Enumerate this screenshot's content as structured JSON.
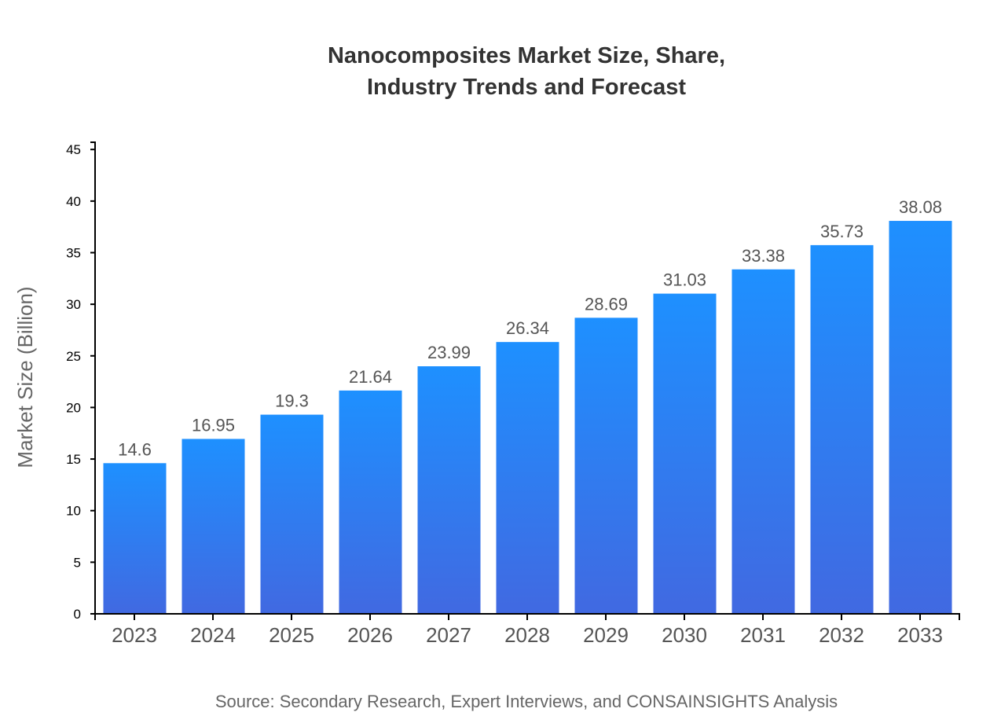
{
  "chart_data": {
    "type": "bar",
    "title_lines": [
      "Nanocomposites Market Size, Share,",
      "Industry Trends and Forecast"
    ],
    "xlabel": "",
    "ylabel": "Market Size (Billion)",
    "categories": [
      "2023",
      "2024",
      "2025",
      "2026",
      "2027",
      "2028",
      "2029",
      "2030",
      "2031",
      "2032",
      "2033"
    ],
    "values": [
      14.6,
      16.95,
      19.3,
      21.64,
      23.99,
      26.34,
      28.69,
      31.03,
      33.38,
      35.73,
      38.08
    ],
    "ylim": [
      0,
      45.7
    ],
    "yticks": [
      0,
      5,
      10,
      15,
      20,
      25,
      30,
      35,
      40,
      45
    ],
    "grid": false,
    "bar_gradient": {
      "top": "#1E90FF",
      "bottom": "#4169E1"
    },
    "source": "Source: Secondary Research, Expert Interviews, and CONSAINSIGHTS Analysis"
  }
}
